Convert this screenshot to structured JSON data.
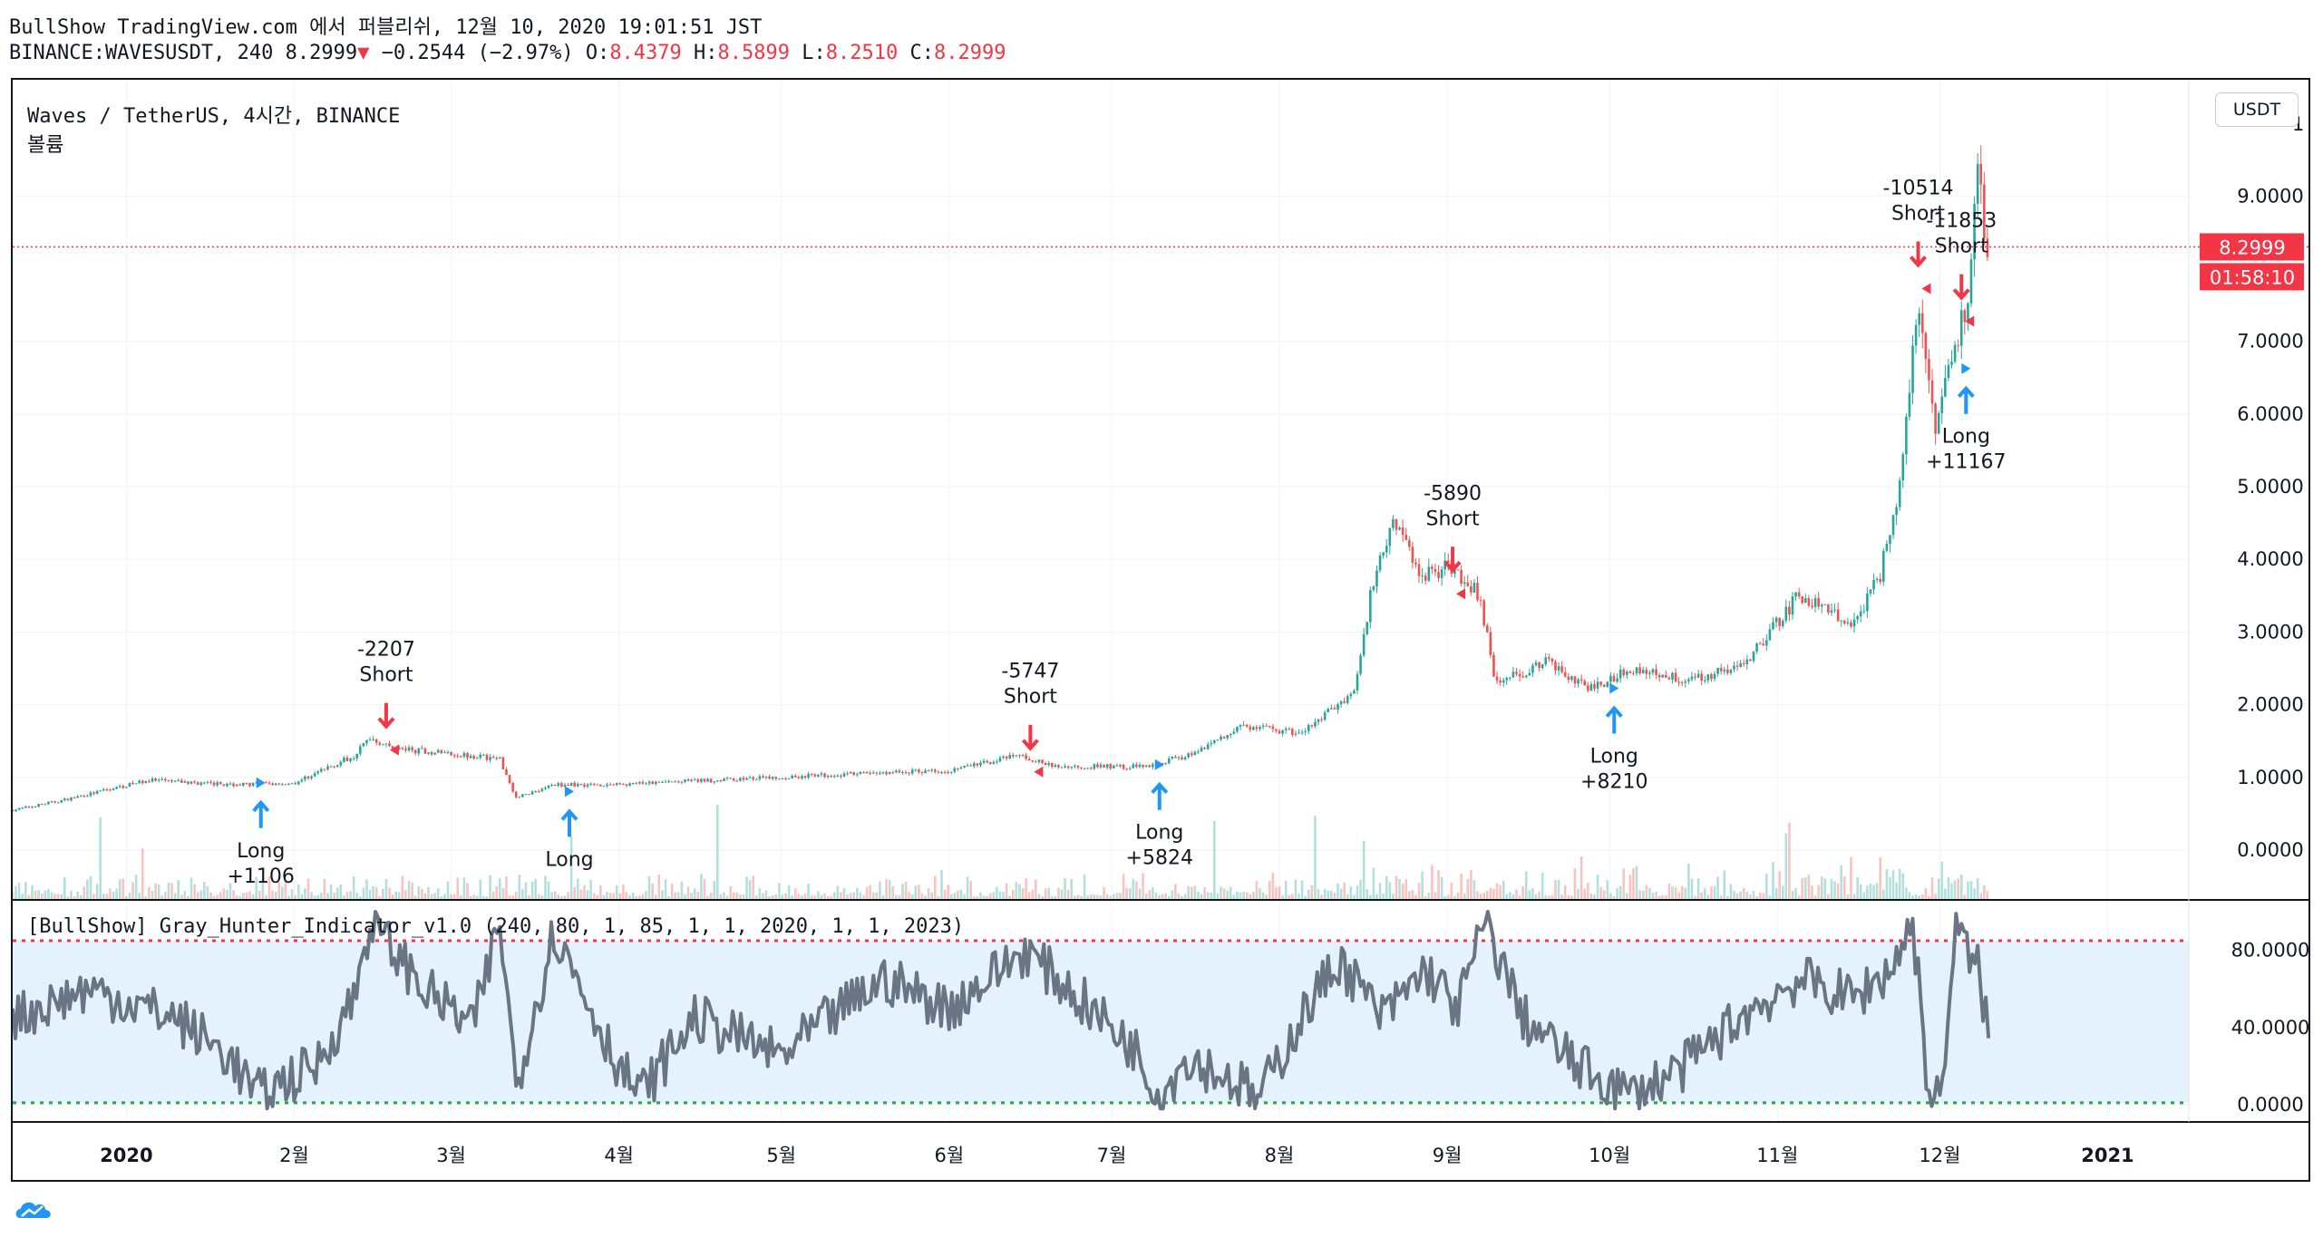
{
  "header": {
    "publisher": "BullShow TradingView.com 에서 퍼블리쉬, 12월 10, 2020 19:01:51 JST",
    "symbol": "BINANCE:WAVESUSDT, 240",
    "last": "8.2999",
    "change": "−0.2544 (−2.97%)",
    "o_label": "O:",
    "o": "8.4379",
    "h_label": "H:",
    "h": "8.5899",
    "l_label": "L:",
    "l": "8.2510",
    "c_label": "C:",
    "c": "8.2999"
  },
  "pane": {
    "title": "Waves / TetherUS, 4시간, BINANCE",
    "volume_label": "볼륨",
    "currency_button": "USDT",
    "price_tag": "8.2999",
    "countdown_tag": "01:58:10",
    "indicator_title": "[BullShow] Gray_Hunter_Indicator_v1.0 (240, 80, 1, 85, 1, 1, 2020, 1, 1, 2023)"
  },
  "colors": {
    "up": "#26a69a",
    "down": "#ef5350",
    "long_arrow": "#2196f3",
    "short_arrow": "#f23645",
    "oscillator": "#6b7484",
    "band_fill": "#e3f2fd",
    "upper_line": "#f23645",
    "lower_line": "#26a641",
    "price_line": "#f23645"
  },
  "chart_data": [
    {
      "type": "candlestick",
      "x_ticks": [
        "2020",
        "2월",
        "3월",
        "4월",
        "5월",
        "6월",
        "7월",
        "8월",
        "9월",
        "10월",
        "11월",
        "12월",
        "2021"
      ],
      "y_ticks": [
        "0.0000",
        "1.0000",
        "2.0000",
        "3.0000",
        "4.0000",
        "5.0000",
        "6.0000",
        "7.0000",
        "9.0000"
      ],
      "y_top_tick": "1",
      "ylim": [
        -0.35,
        10.5
      ],
      "price_points": [
        [
          "2019-12-11",
          0.55
        ],
        [
          "2019-12-20",
          0.68
        ],
        [
          "2020-01-05",
          0.96
        ],
        [
          "2020-01-20",
          0.9
        ],
        [
          "2020-02-01",
          0.92
        ],
        [
          "2020-02-12",
          1.3
        ],
        [
          "2020-02-15",
          1.55
        ],
        [
          "2020-02-19",
          1.4
        ],
        [
          "2020-03-05",
          1.3
        ],
        [
          "2020-03-10",
          1.25
        ],
        [
          "2020-03-13",
          0.72
        ],
        [
          "2020-03-20",
          0.9
        ],
        [
          "2020-04-01",
          0.9
        ],
        [
          "2020-04-15",
          0.95
        ],
        [
          "2020-05-01",
          1.0
        ],
        [
          "2020-05-15",
          1.05
        ],
        [
          "2020-06-01",
          1.1
        ],
        [
          "2020-06-14",
          1.3
        ],
        [
          "2020-06-20",
          1.15
        ],
        [
          "2020-07-07",
          1.15
        ],
        [
          "2020-07-15",
          1.3
        ],
        [
          "2020-07-25",
          1.7
        ],
        [
          "2020-08-05",
          1.6
        ],
        [
          "2020-08-15",
          2.2
        ],
        [
          "2020-08-18",
          3.6
        ],
        [
          "2020-08-22",
          4.6
        ],
        [
          "2020-08-27",
          3.8
        ],
        [
          "2020-09-02",
          3.9
        ],
        [
          "2020-09-07",
          3.5
        ],
        [
          "2020-09-10",
          2.3
        ],
        [
          "2020-09-20",
          2.6
        ],
        [
          "2020-09-27",
          2.2
        ],
        [
          "2020-10-05",
          2.5
        ],
        [
          "2020-10-15",
          2.35
        ],
        [
          "2020-10-25",
          2.5
        ],
        [
          "2020-11-05",
          3.5
        ],
        [
          "2020-11-15",
          3.1
        ],
        [
          "2020-11-20",
          3.8
        ],
        [
          "2020-11-24",
          5.2
        ],
        [
          "2020-11-27",
          7.7
        ],
        [
          "2020-11-29",
          6.5
        ],
        [
          "2020-11-30",
          5.8
        ],
        [
          "2020-12-03",
          6.8
        ],
        [
          "2020-12-06",
          7.5
        ],
        [
          "2020-12-08",
          9.2
        ],
        [
          "2020-12-10",
          8.3
        ]
      ],
      "signals": [
        {
          "type": "long",
          "date": "2020-01-23",
          "price": 0.9,
          "labels": [
            "Long",
            "+1106"
          ]
        },
        {
          "type": "short",
          "date": "2020-02-18",
          "price": 1.55,
          "labels": [
            "-2207",
            "Short"
          ]
        },
        {
          "type": "long",
          "date": "2020-03-20",
          "price": 0.78,
          "labels": [
            "Long"
          ]
        },
        {
          "type": "short",
          "date": "2020-06-16",
          "price": 1.25,
          "labels": [
            "-5747",
            "Short"
          ]
        },
        {
          "type": "long",
          "date": "2020-07-07",
          "price": 1.15,
          "labels": [
            "Long",
            "+5824"
          ]
        },
        {
          "type": "short",
          "date": "2020-09-02",
          "price": 3.7,
          "labels": [
            "-5890",
            "Short"
          ]
        },
        {
          "type": "long",
          "date": "2020-09-29",
          "price": 2.2,
          "labels": [
            "Long",
            "+8210"
          ]
        },
        {
          "type": "short",
          "date": "2020-11-27",
          "price": 7.9,
          "labels": [
            "-10514",
            "Short"
          ]
        },
        {
          "type": "long",
          "date": "2020-12-03",
          "price": 6.6,
          "labels": [
            "Long",
            "+11167"
          ]
        },
        {
          "type": "short",
          "date": "2020-12-05",
          "price": 7.45,
          "labels": [
            "-11853",
            "Short"
          ]
        }
      ],
      "current_price": 8.2999
    },
    {
      "type": "line",
      "name": "Gray_Hunter_Indicator_v1.0",
      "y_ticks": [
        "80.0000",
        "40.0000",
        "0.0000"
      ],
      "ylim": [
        -8,
        100
      ],
      "upper_band": 85,
      "lower_band": 1,
      "points": [
        [
          "2019-12-11",
          45
        ],
        [
          "2019-12-25",
          60
        ],
        [
          "2020-01-10",
          45
        ],
        [
          "2020-01-20",
          25
        ],
        [
          "2020-01-25",
          5
        ],
        [
          "2020-02-05",
          20
        ],
        [
          "2020-02-12",
          55
        ],
        [
          "2020-02-15",
          95
        ],
        [
          "2020-02-25",
          60
        ],
        [
          "2020-03-05",
          40
        ],
        [
          "2020-03-10",
          95
        ],
        [
          "2020-03-13",
          10
        ],
        [
          "2020-03-20",
          90
        ],
        [
          "2020-04-01",
          20
        ],
        [
          "2020-04-05",
          5
        ],
        [
          "2020-04-15",
          45
        ],
        [
          "2020-05-01",
          25
        ],
        [
          "2020-05-10",
          45
        ],
        [
          "2020-05-20",
          65
        ],
        [
          "2020-06-01",
          50
        ],
        [
          "2020-06-15",
          80
        ],
        [
          "2020-06-25",
          55
        ],
        [
          "2020-07-05",
          30
        ],
        [
          "2020-07-10",
          5
        ],
        [
          "2020-07-15",
          25
        ],
        [
          "2020-07-25",
          10
        ],
        [
          "2020-07-28",
          2
        ],
        [
          "2020-08-05",
          45
        ],
        [
          "2020-08-12",
          75
        ],
        [
          "2020-08-20",
          45
        ],
        [
          "2020-08-28",
          70
        ],
        [
          "2020-09-03",
          50
        ],
        [
          "2020-09-08",
          95
        ],
        [
          "2020-09-15",
          45
        ],
        [
          "2020-09-25",
          20
        ],
        [
          "2020-10-05",
          5
        ],
        [
          "2020-10-15",
          20
        ],
        [
          "2020-10-25",
          45
        ],
        [
          "2020-11-05",
          65
        ],
        [
          "2020-11-15",
          55
        ],
        [
          "2020-11-22",
          70
        ],
        [
          "2020-11-26",
          95
        ],
        [
          "2020-11-29",
          5
        ],
        [
          "2020-12-01",
          2
        ],
        [
          "2020-12-04",
          90
        ],
        [
          "2020-12-08",
          70
        ],
        [
          "2020-12-10",
          40
        ]
      ]
    }
  ]
}
